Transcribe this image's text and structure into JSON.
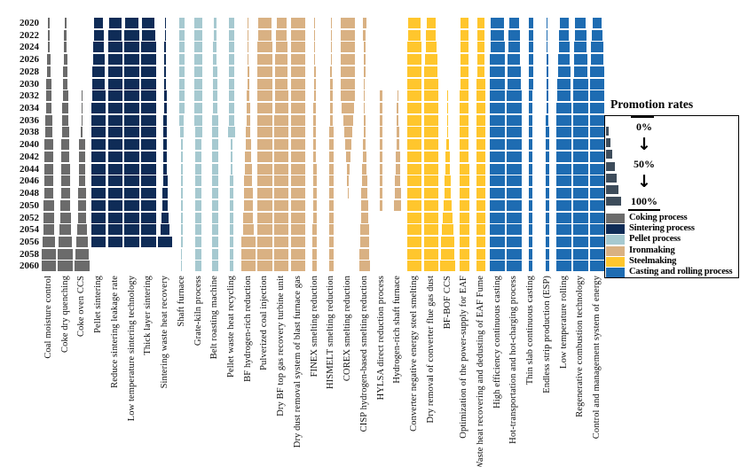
{
  "legend": {
    "title": "Promotion rates",
    "scale_labels": [
      "0%",
      "50%",
      "100%"
    ],
    "arrow_icon": "↓",
    "ramp_color": "#3d4c5b",
    "groups": [
      {
        "label": "Coking process",
        "color": "#6b6b6b"
      },
      {
        "label": "Sintering process",
        "color": "#0f2c57"
      },
      {
        "label": "Pellet process",
        "color": "#a6c9d0"
      },
      {
        "label": "Ironmaking",
        "color": "#d9b183"
      },
      {
        "label": "Steelmaking",
        "color": "#ffc62d"
      },
      {
        "label": "Casting and rolling process",
        "color": "#1e6cb2"
      }
    ]
  },
  "chart_data": {
    "type": "heatmap",
    "mark_encoding": "bar width encodes promotion rate 0-100% per technology per year",
    "value_unit": "percent promotion rate",
    "ylim": [
      0,
      100
    ],
    "years": [
      "2020",
      "2022",
      "2024",
      "2026",
      "2028",
      "2030",
      "2032",
      "2034",
      "2036",
      "2038",
      "2040",
      "2042",
      "2044",
      "2046",
      "2048",
      "2050",
      "2052",
      "2054",
      "2056",
      "2058",
      "2060"
    ],
    "columns": [
      {
        "label": "Coal moisture control",
        "group": "Coking process",
        "values": [
          4,
          8,
          14,
          20,
          26,
          32,
          38,
          42,
          46,
          50,
          55,
          58,
          60,
          63,
          66,
          70,
          74,
          78,
          85,
          100,
          100
        ]
      },
      {
        "label": "Coke dry quenching",
        "group": "Coking process",
        "values": [
          12,
          15,
          18,
          22,
          28,
          33,
          38,
          42,
          45,
          48,
          52,
          55,
          58,
          60,
          63,
          67,
          72,
          78,
          88,
          100,
          100
        ]
      },
      {
        "label": "Coke oven CCS",
        "group": "Coking process",
        "values": [
          null,
          null,
          null,
          null,
          null,
          null,
          3,
          8,
          10,
          12,
          40,
          42,
          45,
          48,
          50,
          54,
          58,
          65,
          80,
          92,
          100
        ]
      },
      {
        "label": "Pellet sintering",
        "group": "Sintering process",
        "values": [
          63,
          68,
          72,
          78,
          83,
          88,
          92,
          96,
          100,
          100,
          100,
          100,
          100,
          100,
          100,
          100,
          100,
          100,
          100,
          null,
          null
        ]
      },
      {
        "label": "Reduce sintering leakage rate",
        "group": "Sintering process",
        "values": [
          85,
          90,
          100,
          100,
          100,
          100,
          100,
          100,
          100,
          100,
          100,
          100,
          100,
          100,
          100,
          100,
          100,
          100,
          100,
          null,
          null
        ]
      },
      {
        "label": "Low temperature sintering technology",
        "group": "Sintering process",
        "values": [
          92,
          100,
          100,
          100,
          100,
          100,
          100,
          100,
          100,
          100,
          100,
          100,
          100,
          100,
          100,
          100,
          100,
          100,
          100,
          null,
          null
        ]
      },
      {
        "label": "Thick layer sintering",
        "group": "Sintering process",
        "values": [
          85,
          95,
          100,
          100,
          100,
          100,
          100,
          100,
          100,
          100,
          100,
          100,
          100,
          100,
          100,
          100,
          100,
          100,
          100,
          null,
          null
        ]
      },
      {
        "label": "Sintering waste heat recovery",
        "group": "Sintering process",
        "values": [
          5,
          7,
          9,
          11,
          13,
          15,
          17,
          19,
          21,
          23,
          25,
          27,
          29,
          31,
          34,
          38,
          45,
          65,
          100,
          null,
          null
        ]
      },
      {
        "label": "Shaft furnace",
        "group": "Pellet process",
        "values": [
          40,
          40,
          40,
          40,
          40,
          40,
          40,
          40,
          32,
          22,
          14,
          13,
          13,
          12,
          12,
          11,
          10,
          9,
          9,
          8,
          8
        ]
      },
      {
        "label": "Grate-kiln process",
        "group": "Pellet process",
        "values": [
          52,
          52,
          52,
          52,
          52,
          52,
          52,
          52,
          52,
          48,
          45,
          45,
          45,
          45,
          45,
          45,
          45,
          45,
          45,
          45,
          45
        ]
      },
      {
        "label": "Belt roasting machine",
        "group": "Pellet process",
        "values": [
          20,
          20,
          22,
          25,
          27,
          27,
          27,
          28,
          42,
          42,
          42,
          42,
          42,
          42,
          42,
          42,
          42,
          42,
          42,
          42,
          42
        ]
      },
      {
        "label": "Pellet waste heat recycling",
        "group": "Pellet process",
        "values": [
          40,
          40,
          40,
          40,
          40,
          40,
          40,
          40,
          40,
          50,
          10,
          10,
          10,
          28,
          28,
          28,
          28,
          28,
          28,
          28,
          28
        ]
      },
      {
        "label": "BF hydrogen-rich reduction",
        "group": "Ironmaking",
        "values": [
          2,
          3,
          5,
          8,
          12,
          15,
          19,
          23,
          27,
          31,
          36,
          41,
          46,
          52,
          58,
          63,
          69,
          75,
          100,
          100,
          100
        ]
      },
      {
        "label": "Pulverized coal injection",
        "group": "Ironmaking",
        "values": [
          92,
          95,
          98,
          100,
          100,
          100,
          100,
          100,
          100,
          100,
          100,
          100,
          100,
          100,
          100,
          100,
          100,
          100,
          100,
          100,
          100
        ]
      },
      {
        "label": "Dry BF top gas recovery turbine unit",
        "group": "Ironmaking",
        "values": [
          68,
          72,
          78,
          82,
          85,
          88,
          90,
          93,
          95,
          98,
          100,
          100,
          100,
          100,
          100,
          100,
          100,
          100,
          100,
          100,
          100
        ]
      },
      {
        "label": "Dry dust removal system of blast furnace gas",
        "group": "Ironmaking",
        "values": [
          100,
          100,
          100,
          100,
          100,
          100,
          100,
          100,
          100,
          100,
          100,
          100,
          100,
          100,
          100,
          100,
          100,
          100,
          100,
          100,
          100
        ]
      },
      {
        "label": "FINEX smelting reduction",
        "group": "Ironmaking",
        "values": [
          4,
          5,
          7,
          9,
          11,
          13,
          14,
          15,
          17,
          18,
          20,
          21,
          23,
          24,
          25,
          26,
          26,
          27,
          27,
          27,
          27
        ]
      },
      {
        "label": "HISMELT smelting reduction",
        "group": "Ironmaking",
        "values": [
          4,
          6,
          9,
          11,
          13,
          16,
          18,
          21,
          23,
          26,
          28,
          30,
          31,
          32,
          33,
          33,
          33,
          33,
          33,
          33,
          33
        ]
      },
      {
        "label": "COREX smelting reduction",
        "group": "Ironmaking",
        "values": [
          100,
          100,
          100,
          100,
          100,
          100,
          93,
          82,
          68,
          55,
          42,
          30,
          18,
          10,
          4,
          null,
          null,
          null,
          null,
          null,
          null
        ]
      },
      {
        "label": "CISP hydrogen-based smelting reduction",
        "group": "Ironmaking",
        "values": [
          20,
          18,
          15,
          12,
          9,
          6,
          4,
          4,
          10,
          14,
          19,
          24,
          30,
          36,
          42,
          47,
          52,
          57,
          62,
          66,
          70
        ]
      },
      {
        "label": "HYLSA direct reduction process",
        "group": "Ironmaking",
        "values": [
          null,
          null,
          null,
          null,
          null,
          null,
          15,
          16,
          16,
          17,
          17,
          18,
          18,
          19,
          20,
          20,
          null,
          null,
          null,
          null,
          null
        ]
      },
      {
        "label": "Hydrogen-rich shaft furnace",
        "group": "Ironmaking",
        "values": [
          null,
          null,
          null,
          null,
          null,
          null,
          8,
          11,
          14,
          18,
          22,
          27,
          32,
          38,
          44,
          50,
          null,
          null,
          null,
          null,
          null
        ]
      },
      {
        "label": "Converter negative energy steel smelting",
        "group": "Steelmaking",
        "values": [
          88,
          90,
          92,
          95,
          97,
          99,
          100,
          100,
          100,
          100,
          100,
          100,
          100,
          100,
          100,
          100,
          100,
          100,
          100,
          100,
          100
        ]
      },
      {
        "label": "Dry removal of converter flue gas dust",
        "group": "Steelmaking",
        "values": [
          60,
          68,
          76,
          84,
          90,
          95,
          98,
          100,
          100,
          100,
          100,
          100,
          100,
          100,
          100,
          100,
          100,
          100,
          100,
          100,
          100
        ]
      },
      {
        "label": "BF-BOF CCS",
        "group": "Steelmaking",
        "values": [
          null,
          null,
          null,
          null,
          null,
          null,
          3,
          5,
          8,
          12,
          18,
          25,
          32,
          40,
          48,
          58,
          68,
          78,
          88,
          95,
          100
        ]
      },
      {
        "label": "Optimization of the power-supply for EAF",
        "group": "Steelmaking",
        "values": [
          52,
          53,
          54,
          55,
          56,
          57,
          58,
          59,
          60,
          61,
          62,
          63,
          64,
          65,
          65,
          66,
          66,
          67,
          67,
          68,
          68
        ]
      },
      {
        "label": "Waste heat recovering and dedusting of EAF Fume",
        "group": "Steelmaking",
        "values": [
          50,
          51,
          52,
          53,
          54,
          55,
          56,
          57,
          58,
          59,
          60,
          60,
          61,
          61,
          62,
          62,
          63,
          63,
          64,
          64,
          65
        ]
      },
      {
        "label": "High efficiency continuous casting",
        "group": "Casting and rolling process",
        "values": [
          90,
          94,
          97,
          100,
          100,
          100,
          100,
          100,
          100,
          100,
          100,
          100,
          100,
          100,
          100,
          100,
          100,
          100,
          100,
          100,
          100
        ]
      },
      {
        "label": "Hot-transportation and hot-charging process",
        "group": "Casting and rolling process",
        "values": [
          72,
          75,
          80,
          85,
          90,
          95,
          98,
          100,
          100,
          100,
          100,
          100,
          100,
          100,
          100,
          100,
          100,
          100,
          100,
          100,
          100
        ]
      },
      {
        "label": "Thin slab continuous casting",
        "group": "Casting and rolling process",
        "values": [
          30,
          30,
          30,
          30,
          30,
          30,
          28,
          25,
          25,
          25,
          25,
          25,
          25,
          25,
          25,
          25,
          25,
          25,
          25,
          25,
          25
        ]
      },
      {
        "label": "Endless strip production (ESP)",
        "group": "Casting and rolling process",
        "values": [
          5,
          5,
          6,
          8,
          10,
          12,
          14,
          16,
          18,
          20,
          25,
          25,
          25,
          25,
          25,
          25,
          25,
          25,
          25,
          25,
          25
        ]
      },
      {
        "label": "Low temperature rolling",
        "group": "Casting and rolling process",
        "values": [
          62,
          66,
          72,
          78,
          84,
          90,
          95,
          100,
          100,
          100,
          100,
          100,
          100,
          100,
          100,
          100,
          100,
          100,
          100,
          100,
          100
        ]
      },
      {
        "label": "Regenerative combustion technology",
        "group": "Casting and rolling process",
        "values": [
          72,
          78,
          84,
          90,
          95,
          100,
          100,
          100,
          100,
          100,
          100,
          100,
          100,
          100,
          100,
          100,
          100,
          100,
          100,
          100,
          100
        ]
      },
      {
        "label": "Control and management system of energy",
        "group": "Casting and rolling process",
        "values": [
          60,
          70,
          80,
          88,
          95,
          100,
          100,
          100,
          100,
          100,
          100,
          100,
          100,
          100,
          100,
          100,
          100,
          100,
          100,
          100,
          100
        ]
      }
    ]
  }
}
